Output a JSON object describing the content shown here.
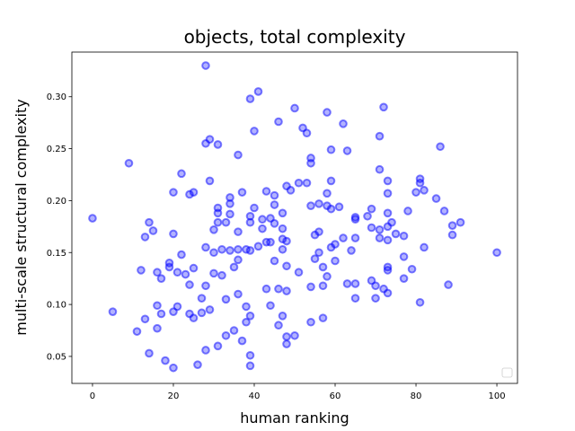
{
  "chart_data": {
    "type": "scatter",
    "title": "objects, total complexity",
    "x_label": "human ranking",
    "y_label": "multi-scale structural complexity",
    "color": "#0000ff",
    "legend_loc": "lower right",
    "x": [
      0,
      5,
      9,
      11,
      12,
      13,
      13,
      14,
      14,
      15,
      16,
      16,
      16,
      17,
      17,
      18,
      19,
      19,
      20,
      20,
      20,
      20,
      21,
      21,
      22,
      22,
      23,
      24,
      24,
      24,
      25,
      25,
      25,
      26,
      27,
      27,
      28,
      28,
      28,
      28,
      28,
      29,
      29,
      29,
      30,
      30,
      30,
      31,
      31,
      31,
      31,
      31,
      32,
      32,
      33,
      33,
      33,
      34,
      34,
      34,
      34,
      35,
      35,
      36,
      36,
      36,
      36,
      36,
      37,
      37,
      38,
      38,
      38,
      39,
      39,
      39,
      39,
      39,
      39,
      39,
      40,
      40,
      41,
      41,
      42,
      42,
      43,
      43,
      43,
      44,
      44,
      44,
      45,
      45,
      45,
      45,
      46,
      46,
      46,
      47,
      47,
      47,
      47,
      47,
      48,
      48,
      48,
      48,
      48,
      48,
      49,
      50,
      50,
      51,
      51,
      52,
      53,
      53,
      54,
      54,
      54,
      54,
      54,
      55,
      55,
      56,
      56,
      56,
      57,
      57,
      57,
      58,
      58,
      58,
      58,
      59,
      59,
      59,
      59,
      60,
      60,
      61,
      62,
      62,
      63,
      63,
      64,
      65,
      65,
      65,
      65,
      65,
      68,
      69,
      69,
      69,
      70,
      70,
      71,
      71,
      71,
      71,
      72,
      72,
      73,
      73,
      73,
      73,
      73,
      73,
      73,
      73,
      74,
      75,
      77,
      77,
      77,
      78,
      79,
      80,
      81,
      81,
      81,
      82,
      82,
      85,
      86,
      87,
      88,
      89,
      89,
      91,
      100
    ],
    "values": [
      0.183,
      0.093,
      0.236,
      0.074,
      0.133,
      0.165,
      0.086,
      0.053,
      0.179,
      0.171,
      0.131,
      0.099,
      0.077,
      0.125,
      0.091,
      0.046,
      0.14,
      0.136,
      0.208,
      0.168,
      0.039,
      0.093,
      0.131,
      0.098,
      0.226,
      0.148,
      0.129,
      0.206,
      0.119,
      0.091,
      0.208,
      0.135,
      0.087,
      0.042,
      0.106,
      0.092,
      0.33,
      0.255,
      0.155,
      0.118,
      0.056,
      0.259,
      0.219,
      0.095,
      0.172,
      0.15,
      0.13,
      0.254,
      0.193,
      0.188,
      0.179,
      0.06,
      0.153,
      0.128,
      0.179,
      0.105,
      0.07,
      0.203,
      0.197,
      0.187,
      0.152,
      0.136,
      0.075,
      0.244,
      0.17,
      0.153,
      0.143,
      0.11,
      0.208,
      0.065,
      0.153,
      0.098,
      0.083,
      0.298,
      0.185,
      0.179,
      0.152,
      0.089,
      0.051,
      0.041,
      0.267,
      0.193,
      0.305,
      0.156,
      0.182,
      0.173,
      0.209,
      0.16,
      0.115,
      0.183,
      0.16,
      0.099,
      0.205,
      0.196,
      0.178,
      0.142,
      0.276,
      0.115,
      0.08,
      0.188,
      0.173,
      0.163,
      0.153,
      0.089,
      0.214,
      0.161,
      0.137,
      0.113,
      0.069,
      0.062,
      0.21,
      0.289,
      0.07,
      0.217,
      0.131,
      0.27,
      0.265,
      0.217,
      0.241,
      0.236,
      0.195,
      0.117,
      0.083,
      0.167,
      0.144,
      0.197,
      0.17,
      0.15,
      0.136,
      0.118,
      0.087,
      0.285,
      0.207,
      0.195,
      0.127,
      0.249,
      0.219,
      0.192,
      0.155,
      0.158,
      0.142,
      0.194,
      0.274,
      0.164,
      0.248,
      0.12,
      0.152,
      0.184,
      0.182,
      0.164,
      0.12,
      0.106,
      0.185,
      0.192,
      0.174,
      0.123,
      0.118,
      0.106,
      0.262,
      0.23,
      0.172,
      0.164,
      0.29,
      0.115,
      0.219,
      0.207,
      0.188,
      0.175,
      0.162,
      0.136,
      0.133,
      0.111,
      0.179,
      0.168,
      0.166,
      0.146,
      0.125,
      0.19,
      0.134,
      0.208,
      0.217,
      0.221,
      0.102,
      0.21,
      0.155,
      0.202,
      0.252,
      0.19,
      0.119,
      0.176,
      0.167,
      0.179,
      0.15
    ],
    "xlim": [
      -5.1,
      105.1
    ],
    "xticks": [
      0,
      20,
      40,
      60,
      80,
      100
    ],
    "ylim": [
      0.024,
      0.343
    ],
    "yticks": [
      0.05,
      {
        "value": 0.1,
        "label": "0.10"
      },
      0.15,
      {
        "value": 0.2,
        "label": "0.20"
      },
      0.25,
      {
        "value": 0.3,
        "label": "0.30"
      }
    ]
  }
}
